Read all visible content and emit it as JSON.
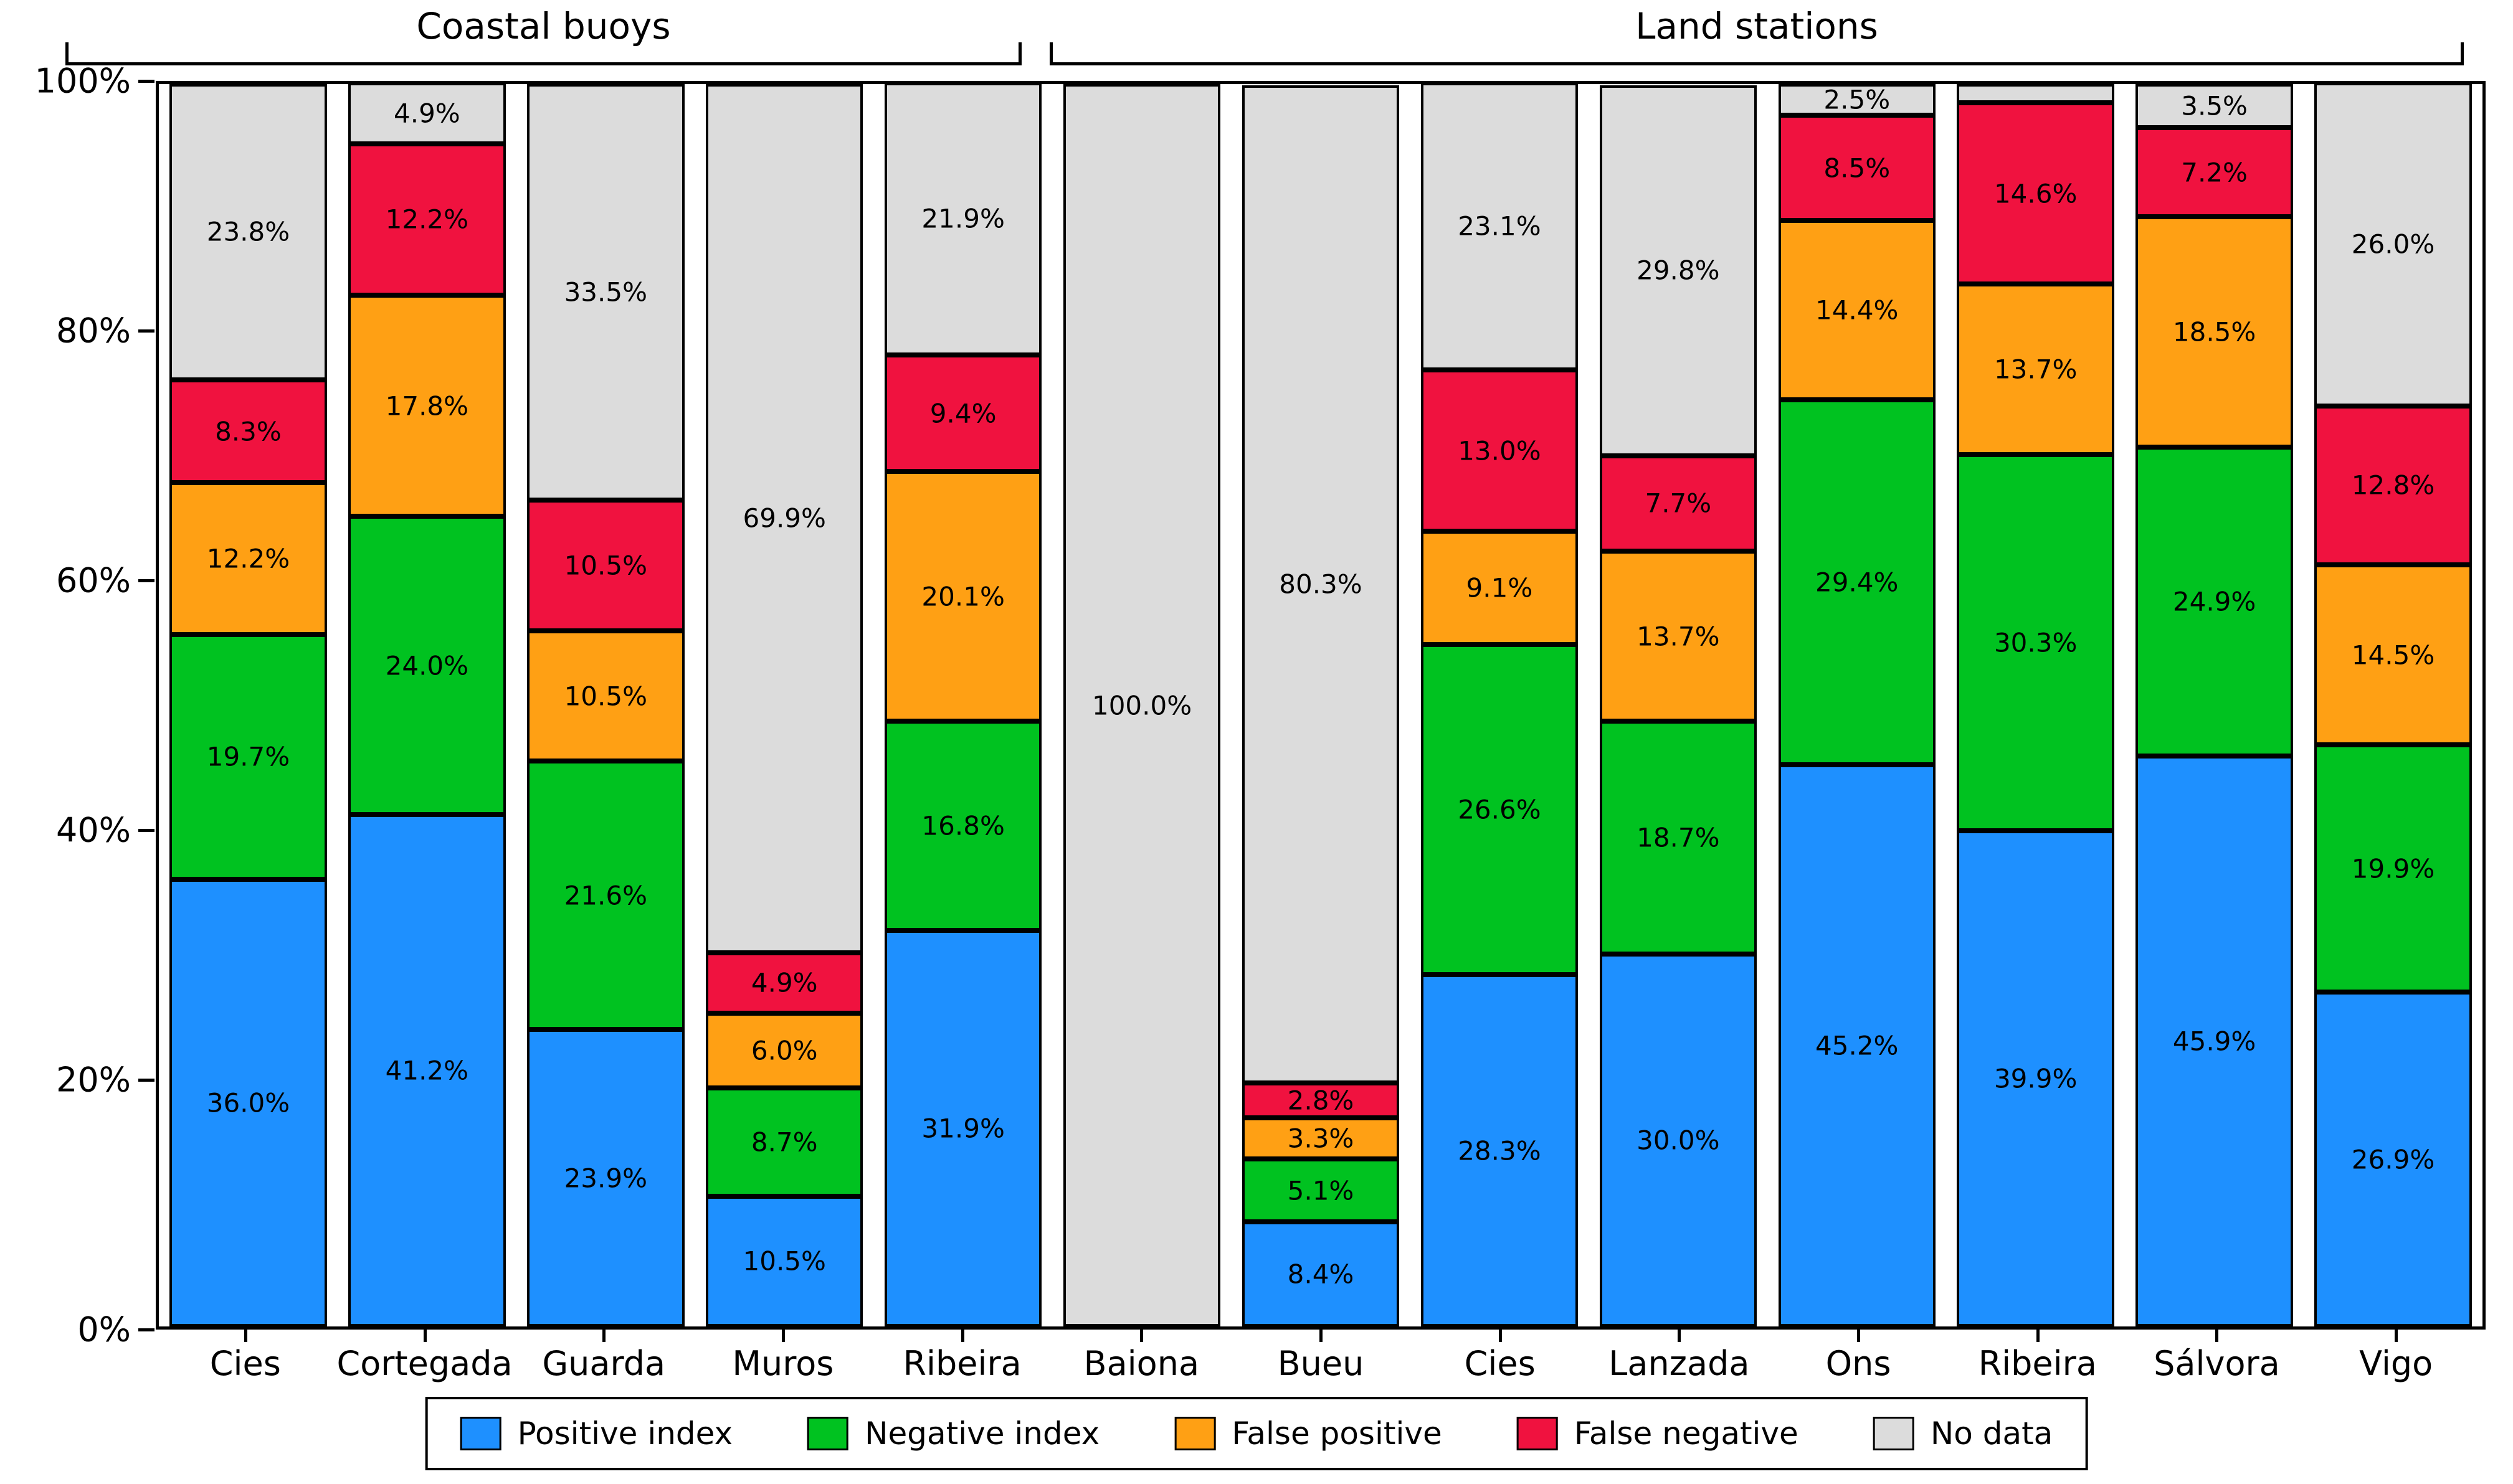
{
  "chart_data": {
    "type": "bar",
    "stacked": true,
    "orientation": "vertical",
    "unit": "%",
    "ylim": [
      0,
      100
    ],
    "yticks": [
      "0%",
      "20%",
      "40%",
      "60%",
      "80%",
      "100%"
    ],
    "grid": false,
    "legend_position": "bottom",
    "groups": [
      {
        "label": "Coastal buoys",
        "bar_indices": [
          0,
          1,
          2,
          3,
          4
        ]
      },
      {
        "label": "Land stations",
        "bar_indices": [
          5,
          6,
          7,
          8,
          9,
          10,
          11,
          12
        ]
      }
    ],
    "categories": [
      "Cies",
      "Cortegada",
      "Guarda",
      "Muros",
      "Ribeira",
      "Baiona",
      "Bueu",
      "Cies",
      "Lanzada",
      "Ons",
      "Ribeira",
      "Sálvora",
      "Vigo"
    ],
    "series": [
      {
        "name": "Positive index",
        "color": "#1E90FF",
        "values": [
          36.0,
          41.2,
          23.9,
          10.5,
          31.9,
          0,
          8.4,
          28.3,
          30.0,
          45.2,
          39.9,
          45.9,
          26.9
        ]
      },
      {
        "name": "Negative index",
        "color": "#00C220",
        "values": [
          19.7,
          24.0,
          21.6,
          8.7,
          16.8,
          0,
          5.1,
          26.6,
          18.7,
          29.4,
          30.3,
          24.9,
          19.9
        ]
      },
      {
        "name": "False positive",
        "color": "#FFA014",
        "values": [
          12.2,
          17.8,
          10.5,
          6.0,
          20.1,
          0,
          3.3,
          9.1,
          13.7,
          14.4,
          13.7,
          18.5,
          14.5
        ]
      },
      {
        "name": "False negative",
        "color": "#F0123F",
        "values": [
          8.3,
          12.2,
          10.5,
          4.9,
          9.4,
          0,
          2.8,
          13.0,
          7.7,
          8.5,
          14.6,
          7.2,
          12.8
        ]
      },
      {
        "name": "No data",
        "color": "#DCDCDC",
        "values": [
          23.8,
          4.9,
          33.5,
          69.9,
          21.9,
          100.0,
          80.3,
          23.1,
          29.8,
          2.5,
          1.5,
          3.5,
          26.0
        ]
      }
    ],
    "hidden_segment_labels": [
      [
        4,
        10
      ]
    ],
    "bar_label_suffix": "%"
  }
}
